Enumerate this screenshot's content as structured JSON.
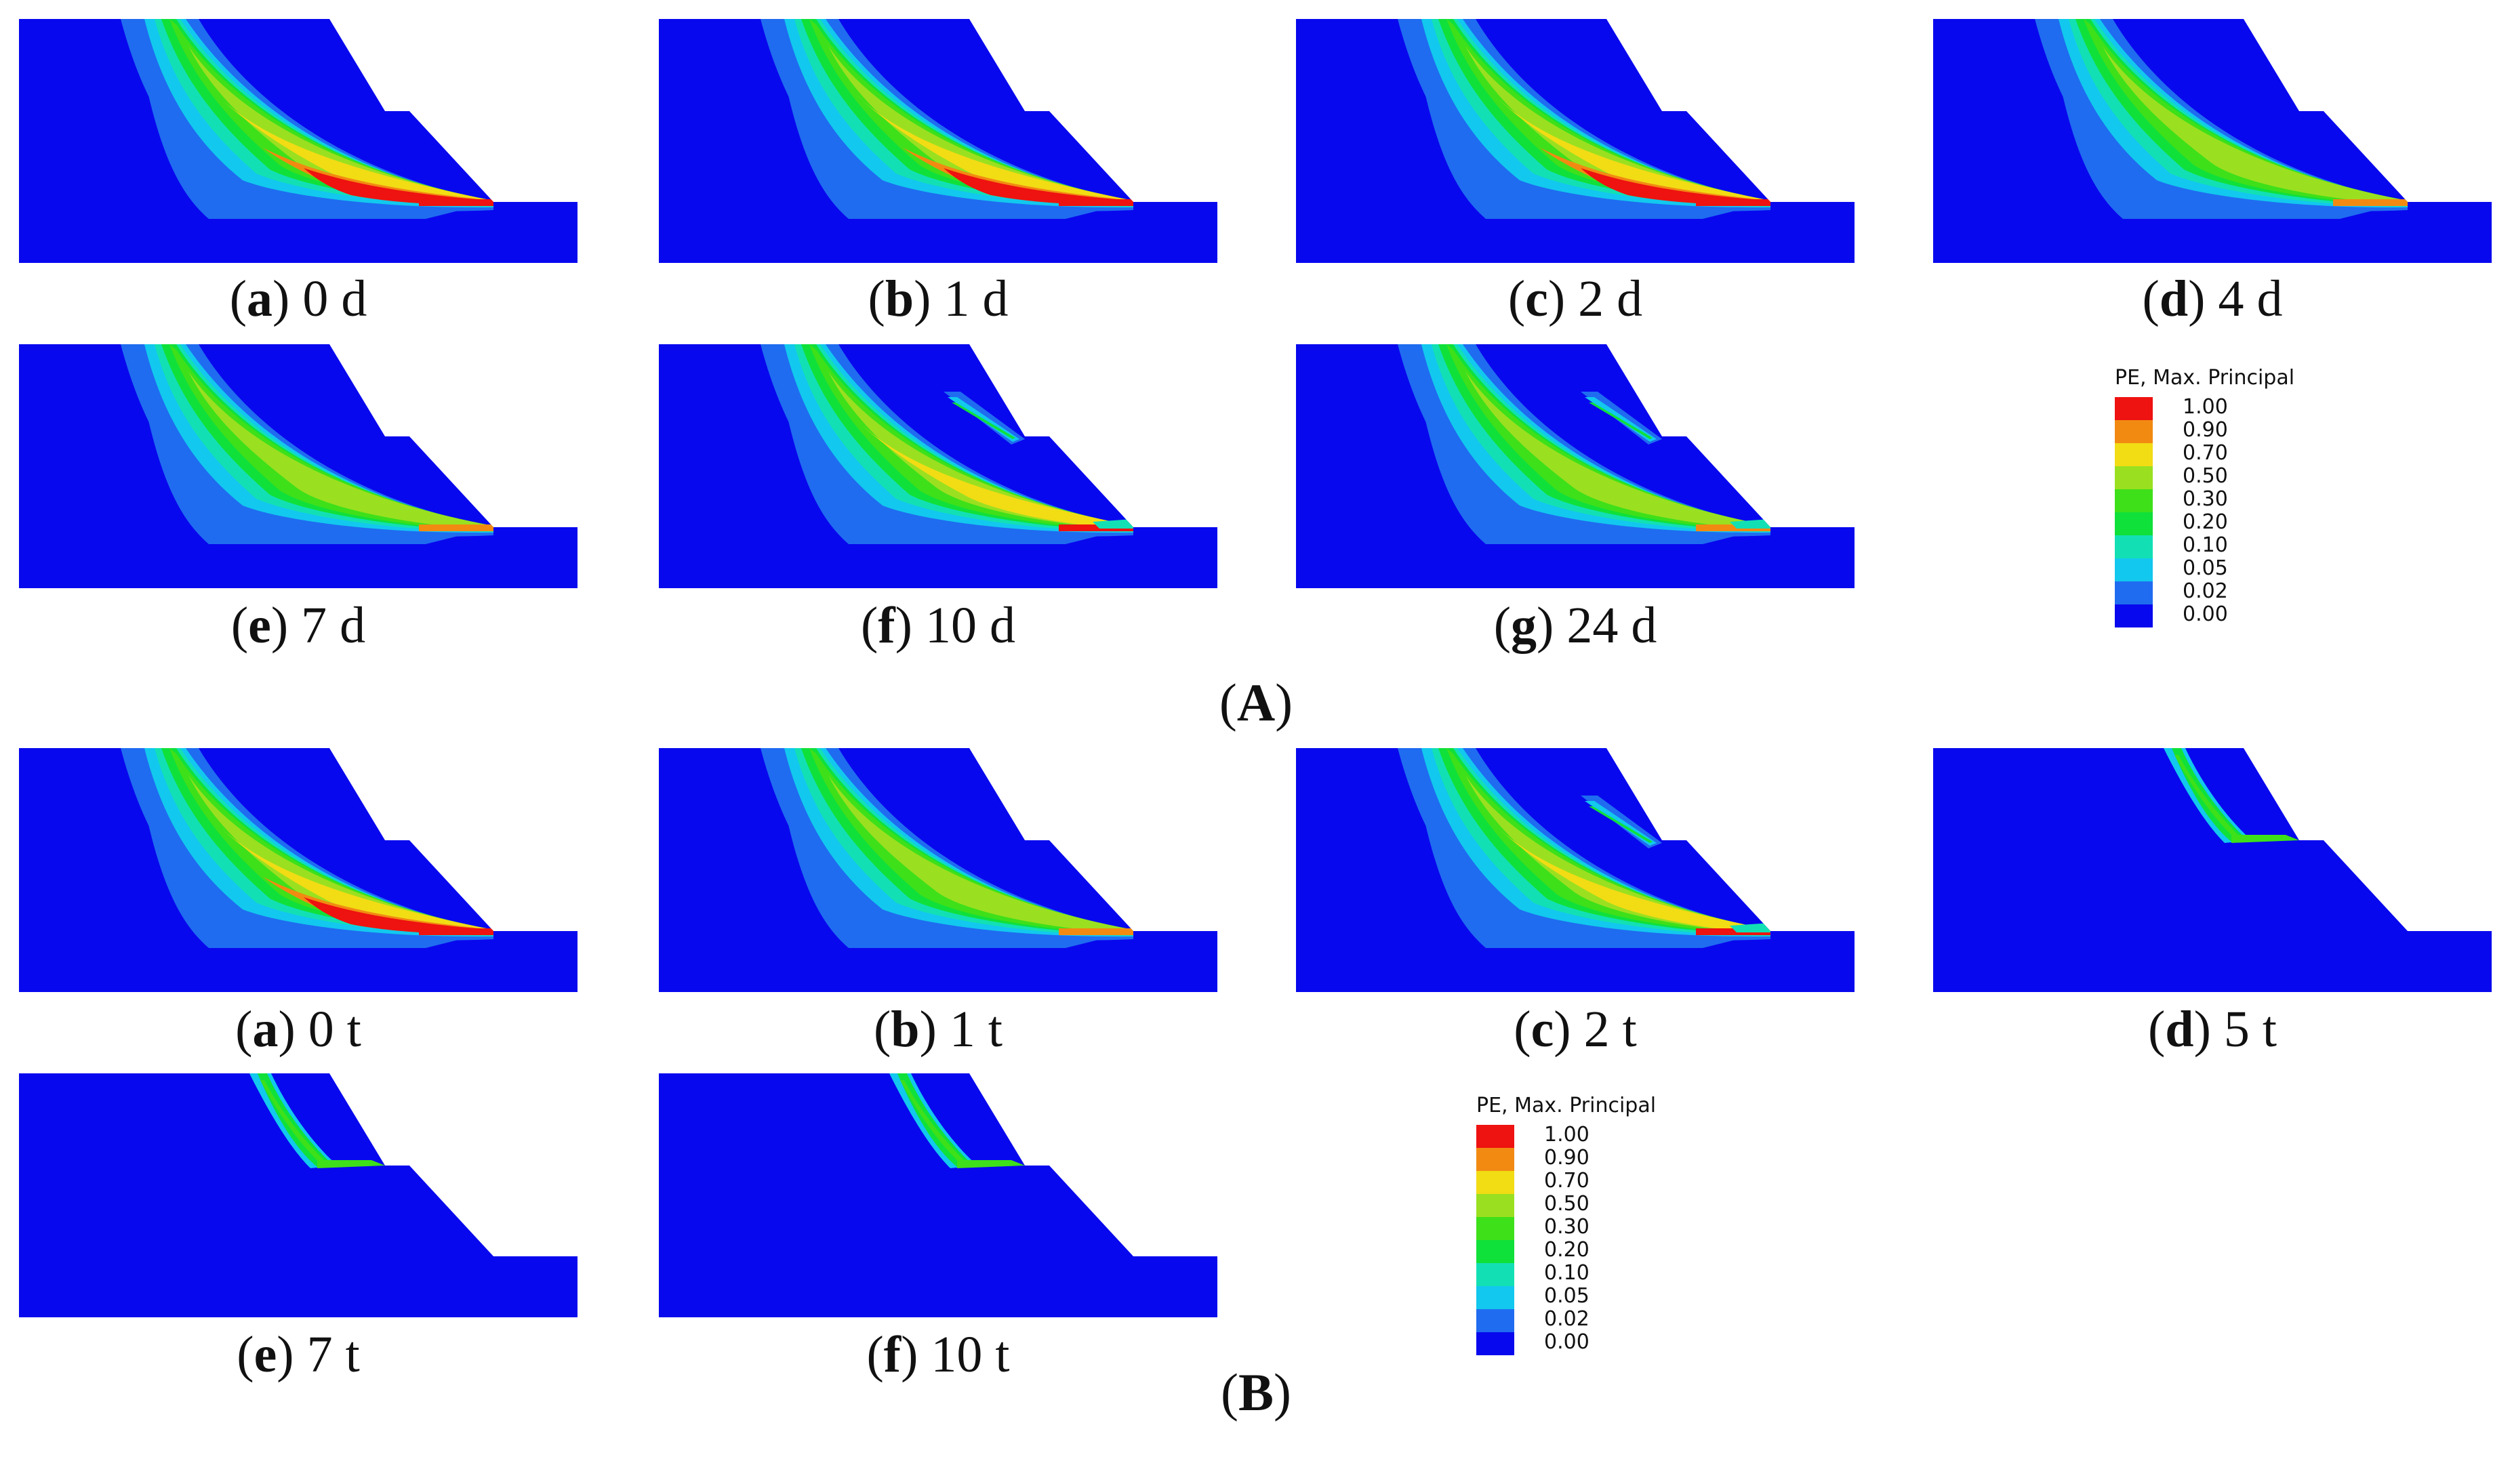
{
  "colors": {
    "background": "#0808ee",
    "c002": "#1f6cf0",
    "c005": "#12c8ee",
    "c010": "#12e0b4",
    "c020": "#10e03a",
    "c030": "#3ee01a",
    "c050": "#9ae020",
    "c070": "#f2dc14",
    "c090": "#f28a12",
    "c100": "#ee1210"
  },
  "groups": [
    {
      "label_prefix": "(",
      "label_bold": "A",
      "label_suffix": ")",
      "legend": {
        "title": "PE, Max. Principal",
        "items": [
          {
            "value": "1.00",
            "color": "#ee1210"
          },
          {
            "value": "0.90",
            "color": "#f28a12"
          },
          {
            "value": "0.70",
            "color": "#f2dc14"
          },
          {
            "value": "0.50",
            "color": "#9ae020"
          },
          {
            "value": "0.30",
            "color": "#3ee01a"
          },
          {
            "value": "0.20",
            "color": "#10e03a"
          },
          {
            "value": "0.10",
            "color": "#12e0b4"
          },
          {
            "value": "0.05",
            "color": "#12c8ee"
          },
          {
            "value": "0.02",
            "color": "#1f6cf0"
          },
          {
            "value": "0.00",
            "color": "#0808ee"
          }
        ]
      },
      "panels": [
        {
          "letter": "a",
          "value": "0 d"
        },
        {
          "letter": "b",
          "value": "1 d"
        },
        {
          "letter": "c",
          "value": "2 d"
        },
        {
          "letter": "d",
          "value": "4 d"
        },
        {
          "letter": "e",
          "value": "7 d"
        },
        {
          "letter": "f",
          "value": "10 d"
        },
        {
          "letter": "g",
          "value": "24 d"
        }
      ]
    },
    {
      "label_prefix": "(",
      "label_bold": "B",
      "label_suffix": ")",
      "legend": {
        "title": "PE, Max. Principal",
        "items": [
          {
            "value": "1.00",
            "color": "#ee1210"
          },
          {
            "value": "0.90",
            "color": "#f28a12"
          },
          {
            "value": "0.70",
            "color": "#f2dc14"
          },
          {
            "value": "0.50",
            "color": "#9ae020"
          },
          {
            "value": "0.30",
            "color": "#3ee01a"
          },
          {
            "value": "0.20",
            "color": "#10e03a"
          },
          {
            "value": "0.10",
            "color": "#12e0b4"
          },
          {
            "value": "0.05",
            "color": "#12c8ee"
          },
          {
            "value": "0.02",
            "color": "#1f6cf0"
          },
          {
            "value": "0.00",
            "color": "#0808ee"
          }
        ]
      },
      "panels": [
        {
          "letter": "a",
          "value": "0 t"
        },
        {
          "letter": "b",
          "value": "1 t"
        },
        {
          "letter": "c",
          "value": "2 t"
        },
        {
          "letter": "d",
          "value": "5 t"
        },
        {
          "letter": "e",
          "value": "7 t"
        },
        {
          "letter": "f",
          "value": "10 t"
        }
      ]
    }
  ]
}
